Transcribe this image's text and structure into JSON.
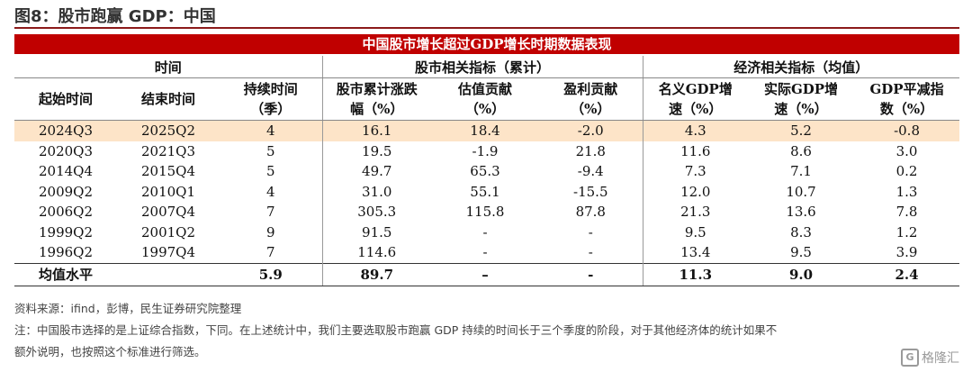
{
  "figure_title": "图8：股市跑赢 GDP：中国",
  "banner": "中国股市增长超过GDP增长时期数据表现",
  "groups": {
    "time": "时间",
    "stock": "股市相关指标（累计）",
    "econ": "经济相关指标（均值）"
  },
  "columns": {
    "start": "起始时间",
    "end": "结束时间",
    "duration": [
      "持续时间",
      "（季）"
    ],
    "stock_rise": [
      "股市累计涨跌",
      "幅（%）"
    ],
    "valuation": [
      "估值贡献",
      "（%）"
    ],
    "earnings": [
      "盈利贡献",
      "（%）"
    ],
    "nominal_gdp": [
      "名义GDP增",
      "速（%）"
    ],
    "real_gdp": [
      "实际GDP增",
      "速（%）"
    ],
    "deflator": [
      "GDP平减指",
      "数（%）"
    ]
  },
  "rows": [
    [
      "2024Q3",
      "2025Q2",
      "4",
      "16.1",
      "18.4",
      "-2.0",
      "4.3",
      "5.2",
      "-0.8"
    ],
    [
      "2020Q3",
      "2021Q3",
      "5",
      "19.5",
      "-1.9",
      "21.8",
      "11.6",
      "8.6",
      "3.0"
    ],
    [
      "2014Q4",
      "2015Q4",
      "5",
      "49.7",
      "65.3",
      "-9.4",
      "7.3",
      "7.1",
      "0.2"
    ],
    [
      "2009Q2",
      "2010Q1",
      "4",
      "31.0",
      "55.1",
      "-15.5",
      "12.0",
      "10.7",
      "1.3"
    ],
    [
      "2006Q2",
      "2007Q4",
      "7",
      "305.3",
      "115.8",
      "87.8",
      "21.3",
      "13.6",
      "7.8"
    ],
    [
      "1999Q2",
      "2001Q2",
      "9",
      "91.5",
      "-",
      "-",
      "9.5",
      "8.3",
      "1.2"
    ],
    [
      "1996Q2",
      "1997Q4",
      "7",
      "114.6",
      "-",
      "-",
      "13.4",
      "9.5",
      "3.9"
    ]
  ],
  "average": [
    "均值水平",
    "",
    "5.9",
    "89.7",
    "–",
    "-",
    "11.3",
    "9.0",
    "2.4"
  ],
  "source": "资料来源：ifind，彭博，民生证券研究院整理",
  "note_line1": "注：中国股市选择的是上证综合指数，下同。在上述统计中，我们主要选取股市跑赢 GDP 持续的时间长于三个季度的阶段，对于其他经济体的统计如果不",
  "note_line2": "额外说明，也按照这个标准进行筛选。",
  "watermark": "格隆汇",
  "watermark_icon": "G-logo-icon",
  "colors": {
    "banner": "#c00000",
    "highlight": "#fde4c8"
  }
}
